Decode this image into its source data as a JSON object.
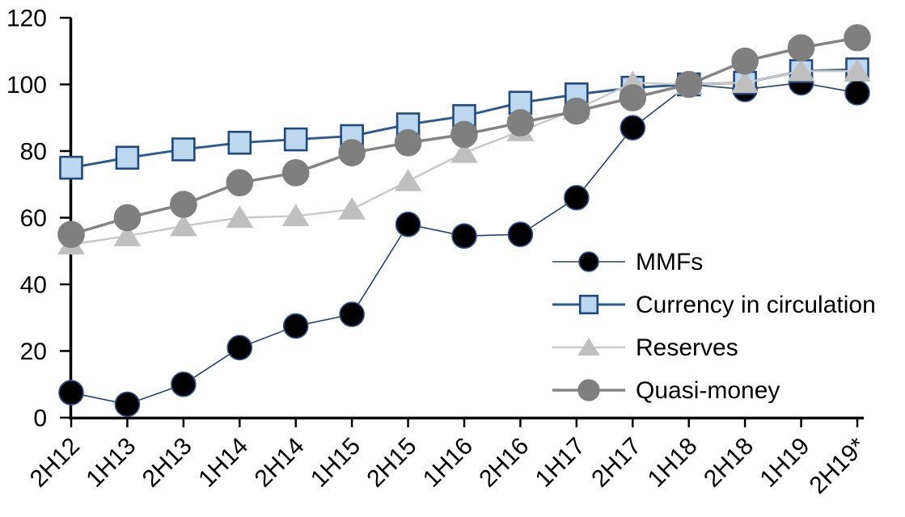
{
  "chart_data": {
    "type": "line",
    "categories": [
      "2H12",
      "1H13",
      "2H13",
      "1H14",
      "2H14",
      "1H15",
      "2H15",
      "1H16",
      "2H16",
      "1H17",
      "2H17",
      "1H18",
      "2H18",
      "1H19",
      "2H19*"
    ],
    "series": [
      {
        "name": "MMFs",
        "marker": "circle",
        "marker_fill": "#000000",
        "marker_stroke": "#2F5597",
        "line_color": "#24406B",
        "line_width": 1.6,
        "values": [
          7.5,
          4,
          10,
          21,
          27.5,
          31,
          58,
          54.5,
          55,
          66,
          87,
          100,
          98.5,
          100.5,
          97.5
        ]
      },
      {
        "name": "Currency in circulation",
        "marker": "square",
        "marker_fill": "#BDD7EE",
        "marker_stroke": "#20497B",
        "line_color": "#2E5B8C",
        "line_width": 3,
        "values": [
          75,
          78,
          80.5,
          82.5,
          83.5,
          84.5,
          88,
          90.5,
          94.5,
          97,
          99,
          100,
          100.5,
          104,
          104.5
        ]
      },
      {
        "name": "Reserves",
        "marker": "triangle",
        "marker_fill": "#BFBFBF",
        "marker_stroke": "#BFBFBF",
        "line_color": "#C9C9C9",
        "line_width": 2.5,
        "values": [
          52,
          54.5,
          57.5,
          60,
          60.5,
          62.5,
          71,
          79.5,
          86,
          92.5,
          100.5,
          100,
          100.5,
          104,
          104
        ]
      },
      {
        "name": "Quasi-money",
        "marker": "circle",
        "marker_fill": "#7F7F7F",
        "marker_stroke": "#7F7F7F",
        "line_color": "#848484",
        "line_width": 3.5,
        "values": [
          55,
          60,
          64,
          70.5,
          73.5,
          79.5,
          82.5,
          85,
          88.5,
          92,
          96,
          100,
          107,
          111,
          114
        ]
      }
    ],
    "title": "",
    "xlabel": "",
    "ylabel": "",
    "ylim": [
      0,
      120
    ],
    "yticks": [
      0,
      20,
      40,
      60,
      80,
      100,
      120
    ],
    "grid": false,
    "legend_position": "middle-right",
    "axis_color": "#000000",
    "legend_labels": [
      "MMFs",
      "Currency in circulation",
      "Reserves",
      "Quasi-money"
    ]
  }
}
